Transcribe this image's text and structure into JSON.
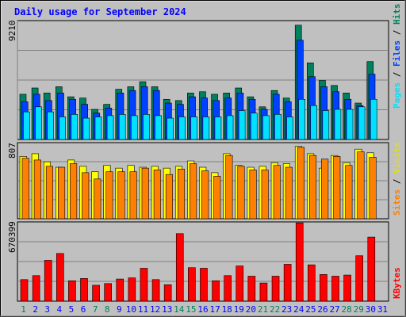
{
  "title": "Daily usage for September 2024",
  "colors": {
    "background": "#c0c0c0",
    "title": "#0000ff",
    "hits": "#00805c",
    "files": "#0040ff",
    "pages": "#00e0ff",
    "visits": "#ffff00",
    "sites": "#ff8000",
    "kbytes": "#ff0000",
    "weekend": "#00805c",
    "weekday": "#0000ff"
  },
  "chart_data": [
    {
      "type": "bar",
      "title": "Daily usage for September 2024",
      "x": [
        1,
        2,
        3,
        4,
        5,
        6,
        7,
        8,
        9,
        10,
        11,
        12,
        13,
        14,
        15,
        16,
        17,
        18,
        19,
        20,
        21,
        22,
        23,
        24,
        25,
        26,
        27,
        28,
        29,
        30,
        31
      ],
      "weekend_days": [
        1,
        7,
        8,
        14,
        15,
        21,
        22,
        28,
        29
      ],
      "ymax": 9210,
      "ymax_label": "9210",
      "legend": [
        "Pages",
        "Files",
        "Hits"
      ],
      "series": [
        {
          "name": "Hits",
          "values": [
            3600,
            4100,
            3700,
            4200,
            3400,
            3300,
            2400,
            2800,
            4000,
            4200,
            4600,
            4200,
            3200,
            3100,
            3700,
            3800,
            3600,
            3700,
            4100,
            3400,
            2600,
            3900,
            3300,
            9100,
            6100,
            4700,
            4300,
            3700,
            2900,
            6200,
            0
          ]
        },
        {
          "name": "Files",
          "values": [
            3000,
            3600,
            3100,
            3700,
            3200,
            2800,
            2100,
            2500,
            3700,
            3900,
            4200,
            3900,
            2900,
            2800,
            3400,
            3300,
            3100,
            3300,
            3700,
            3200,
            2400,
            3600,
            3000,
            7900,
            5000,
            4200,
            3800,
            3200,
            2700,
            5200,
            0
          ]
        },
        {
          "name": "Pages",
          "values": [
            2200,
            2600,
            2200,
            1800,
            2000,
            1700,
            1800,
            1900,
            2000,
            1900,
            2000,
            1900,
            1700,
            1800,
            1800,
            1800,
            1800,
            1900,
            2300,
            2100,
            1900,
            2000,
            1800,
            3200,
            2700,
            2300,
            2400,
            2400,
            2600,
            3200,
            0
          ]
        }
      ]
    },
    {
      "type": "bar",
      "ymax": 807,
      "ymax_label": "807",
      "legend": [
        "Sites",
        "Visits"
      ],
      "series": [
        {
          "name": "Visits",
          "values": [
            690,
            720,
            630,
            570,
            650,
            580,
            520,
            590,
            560,
            590,
            570,
            580,
            560,
            580,
            640,
            570,
            510,
            720,
            590,
            570,
            580,
            620,
            610,
            800,
            720,
            560,
            700,
            620,
            770,
            730,
            0
          ]
        },
        {
          "name": "Sites",
          "values": [
            670,
            650,
            580,
            570,
            610,
            510,
            440,
            520,
            520,
            520,
            560,
            540,
            490,
            550,
            610,
            530,
            470,
            700,
            580,
            540,
            540,
            590,
            570,
            790,
            700,
            660,
            690,
            590,
            740,
            680,
            0
          ]
        }
      ]
    },
    {
      "type": "bar",
      "ymax": 670399,
      "ymax_label": "670399",
      "legend": [
        "KBytes"
      ],
      "series": [
        {
          "name": "KBytes",
          "values": [
            190000,
            225000,
            360000,
            420000,
            180000,
            200000,
            140000,
            155000,
            195000,
            205000,
            290000,
            190000,
            145000,
            595000,
            295000,
            290000,
            180000,
            225000,
            310000,
            220000,
            160000,
            220000,
            325000,
            690000,
            320000,
            235000,
            220000,
            230000,
            400000,
            565000,
            0
          ]
        }
      ]
    }
  ],
  "ylabel": {
    "panel1": [
      "Pages",
      "Files",
      "Hits"
    ],
    "panel1_sep": " / ",
    "panel2": [
      "Sites",
      "Visits"
    ],
    "panel2_sep": " / ",
    "panel3": "KBytes"
  }
}
